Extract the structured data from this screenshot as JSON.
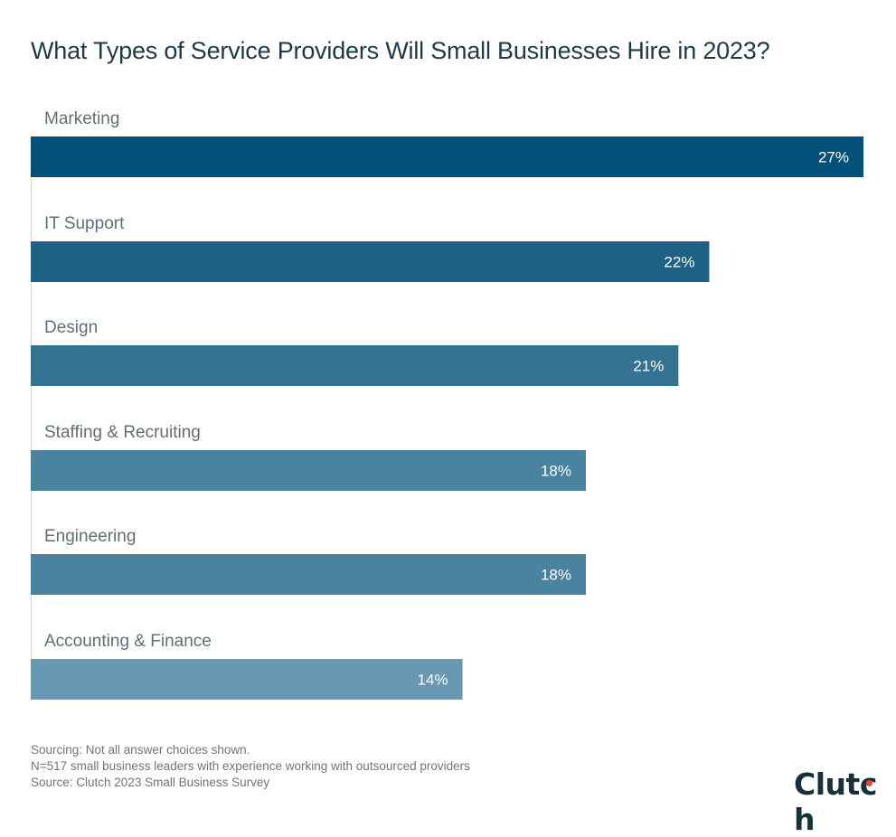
{
  "chart_data": {
    "type": "bar",
    "orientation": "horizontal",
    "title": "What Types of Service Providers Will Small Businesses Hire in 2023?",
    "categories": [
      "Marketing",
      "IT Support",
      "Design",
      "Staffing & Recruiting",
      "Engineering",
      "Accounting & Finance"
    ],
    "values": [
      27,
      22,
      21,
      18,
      18,
      14
    ],
    "value_labels": [
      "27%",
      "22%",
      "21%",
      "18%",
      "18%",
      "14%"
    ],
    "colors": [
      "#035079",
      "#1f6185",
      "#347291",
      "#4a83a0",
      "#4a83a0",
      "#6799b2"
    ],
    "xlabel": "",
    "ylabel": "",
    "xlim": [
      0,
      27
    ],
    "unit": "%",
    "grid": false,
    "legend": "none"
  },
  "notes": [
    "Sourcing: Not all answer choices shown.",
    "N=517 small business leaders with experience working with outsourced providers",
    "Source: Clutch 2023 Small Business Survey"
  ],
  "logo": {
    "text_main": "Clut",
    "text_c": "c",
    "text_end": "h",
    "accent_color": "#e8483a"
  }
}
